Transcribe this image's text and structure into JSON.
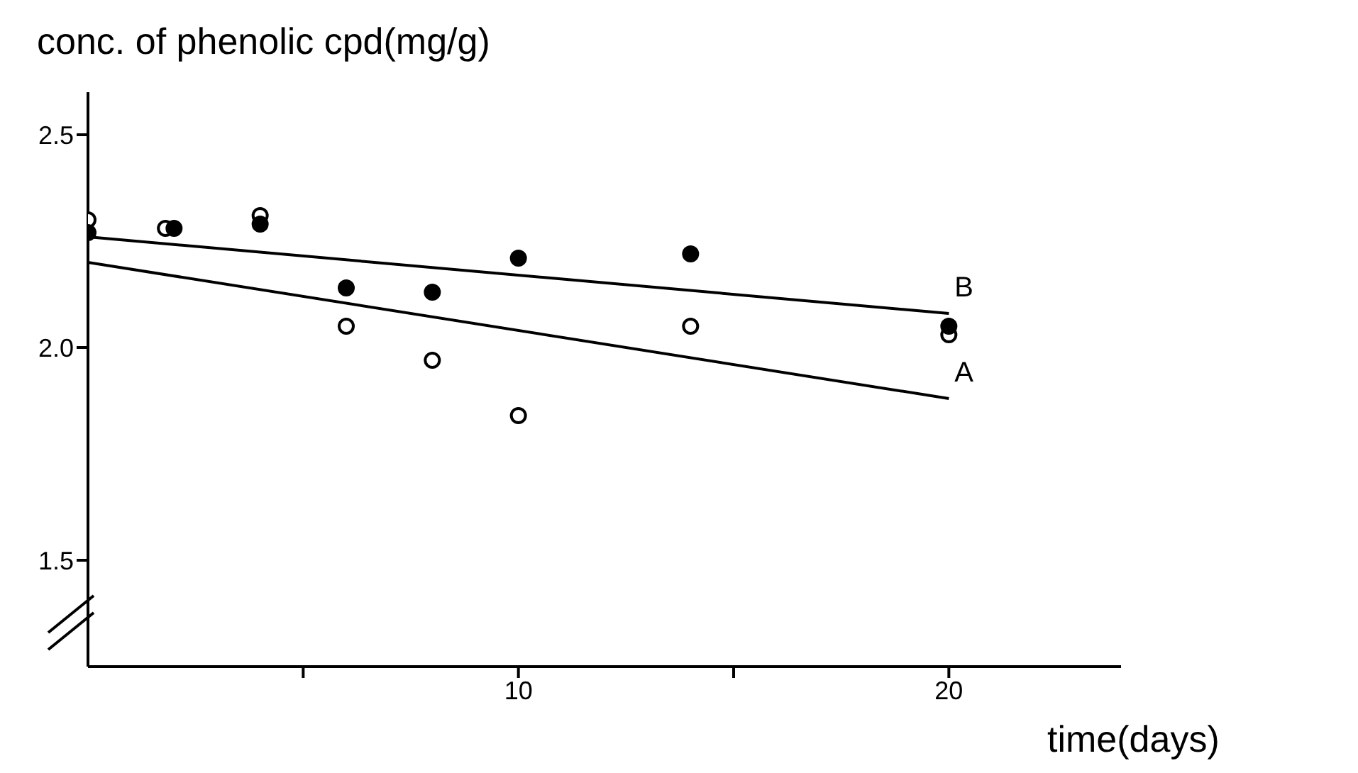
{
  "chart_data": {
    "type": "scatter",
    "ylabel": "conc. of phenolic cpd(mg/g)",
    "xlabel": "time(days)",
    "xlim": [
      0,
      24
    ],
    "xticks": [
      {
        "value": 5,
        "label": null
      },
      10,
      {
        "value": 15,
        "label": null
      },
      20
    ],
    "ylim": [
      1.25,
      2.6
    ],
    "yticks": [
      1.5,
      {
        "value": 2.0,
        "label": "2.0"
      },
      {
        "value": 2.5,
        "label": "2.5"
      }
    ],
    "grid": false,
    "legend": false,
    "series": [
      {
        "color": "#ffffff",
        "marker": "circle",
        "x": [
          0,
          1.8,
          4,
          6,
          8,
          10,
          14,
          20
        ],
        "values": [
          2.3,
          2.28,
          2.31,
          2.05,
          1.97,
          1.84,
          2.05,
          2.03
        ]
      },
      {
        "color": "#000000",
        "marker": "circle",
        "x": [
          0,
          2,
          4,
          6,
          8,
          10,
          14,
          20
        ],
        "values": [
          2.27,
          2.28,
          2.29,
          2.14,
          2.13,
          2.21,
          2.22,
          2.05
        ]
      },
      {
        "type": "line",
        "name": "A",
        "color": "#000000",
        "marker": "none",
        "x": [
          0,
          20
        ],
        "values": [
          2.2,
          1.88
        ]
      },
      {
        "type": "line",
        "name": "B",
        "color": "#000000",
        "marker": "none",
        "x": [
          0,
          20
        ],
        "values": [
          2.26,
          2.08
        ]
      }
    ]
  }
}
